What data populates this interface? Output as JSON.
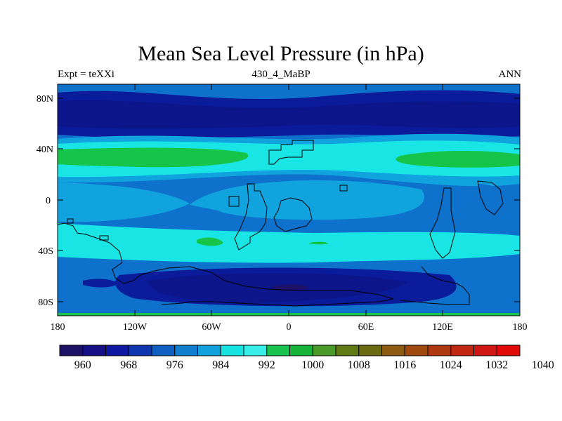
{
  "title": "Mean Sea Level Pressure (in hPa)",
  "left_label": "Expt = teXXi",
  "center_label": "430_4_MaBP",
  "right_label": "ANN",
  "lat_labels": [
    "80N",
    "40N",
    "0",
    "40S",
    "80S"
  ],
  "lon_labels": [
    "180",
    "120W",
    "60W",
    "0",
    "60E",
    "120E",
    "180"
  ],
  "colorbar_labels": [
    "960",
    "968",
    "976",
    "984",
    "992",
    "1000",
    "1008",
    "1016",
    "1024",
    "1032",
    "1040"
  ],
  "colorbar_colors": [
    "#1e1266",
    "#160f85",
    "#0f18a0",
    "#1037ae",
    "#1060c4",
    "#0f7fcd",
    "#10a0dc",
    "#17e3e3",
    "#3aeeea",
    "#17c24e",
    "#15b438",
    "#4a9a2a",
    "#607a14",
    "#6a6a10",
    "#8c5a10",
    "#a04a10",
    "#b03a10",
    "#c02812",
    "#d01812",
    "#e00a0a"
  ],
  "colors": {
    "c984": "#0e71cc",
    "c992": "#10a3de",
    "c1000": "#19e6e4",
    "c1004": "#3ef3ea",
    "c1008": "#16c44a",
    "c976": "#0a1c9a",
    "c968": "#0d158a",
    "c960": "#1e1266"
  }
}
